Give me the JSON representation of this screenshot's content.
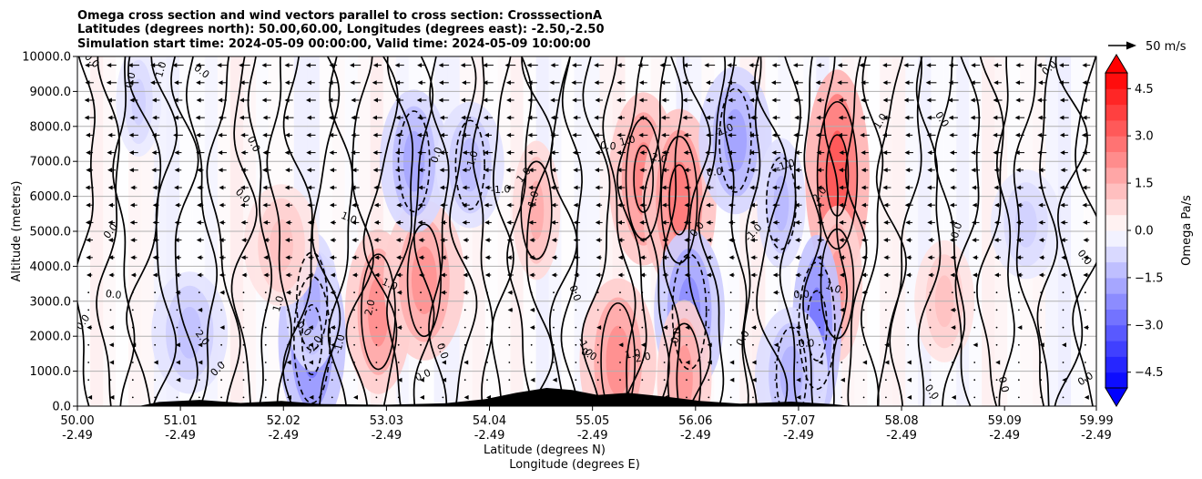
{
  "chart_data": {
    "type": "heatmap",
    "title_lines": [
      "Omega cross section and wind vectors parallel to cross section: CrosssectionA",
      "Latitudes (degrees north): 50.00,60.00, Longitudes (degrees east): -2.50,-2.50",
      "Simulation start time: 2024-05-09 00:00:00, Valid time: 2024-05-09 10:00:00"
    ],
    "ylabel": "Altitude (meters)",
    "xlabel_lat": "Latitude (degrees N)",
    "xlabel_lon": "Longitude (degrees E)",
    "ylim": [
      0,
      10000
    ],
    "y_ticks": [
      "0.0",
      "1000.0",
      "2000.0",
      "3000.0",
      "4000.0",
      "5000.0",
      "6000.0",
      "7000.0",
      "8000.0",
      "9000.0",
      "10000.0"
    ],
    "x_ticks_lat": [
      "50.00",
      "51.01",
      "52.02",
      "53.03",
      "54.04",
      "55.05",
      "56.06",
      "57.07",
      "58.08",
      "59.09",
      "59.99"
    ],
    "x_ticks_lon": [
      "-2.49",
      "-2.49",
      "-2.49",
      "-2.49",
      "-2.49",
      "-2.49",
      "-2.49",
      "-2.49",
      "-2.49",
      "-2.49",
      "-2.49"
    ],
    "xlim_lat": [
      50.0,
      59.99
    ],
    "colorbar": {
      "label": "Omega Pa/s",
      "range": [
        -5.0,
        5.0
      ],
      "tick_labels": [
        "4.5",
        "3.0",
        "1.5",
        "0.0",
        "−1.5",
        "−3.0",
        "−4.5"
      ],
      "tick_values": [
        4.5,
        3.0,
        1.5,
        0.0,
        -1.5,
        -3.0,
        -4.5
      ],
      "low_color": "#0000ff",
      "mid_color": "#ffffff",
      "high_color": "#ff0000",
      "extend": "both"
    },
    "quiver_key_label": "50 m/s",
    "contour_labels": [
      "0.0",
      "1.0",
      "-1.0",
      "2.0",
      "-2.0"
    ],
    "omega_blobs": [
      {
        "lat": 52.3,
        "alt": 1900,
        "value": -2.6
      },
      {
        "lat": 52.3,
        "alt": 3000,
        "value": -1.6
      },
      {
        "lat": 52.95,
        "alt": 2700,
        "value": 2.2
      },
      {
        "lat": 53.4,
        "alt": 3600,
        "value": 2.1
      },
      {
        "lat": 53.3,
        "alt": 7000,
        "value": -1.7
      },
      {
        "lat": 53.85,
        "alt": 6900,
        "value": -1.3
      },
      {
        "lat": 54.5,
        "alt": 5600,
        "value": 1.6
      },
      {
        "lat": 55.3,
        "alt": 1300,
        "value": 2.2
      },
      {
        "lat": 55.55,
        "alt": 6500,
        "value": 2.4
      },
      {
        "lat": 55.9,
        "alt": 5900,
        "value": 2.6
      },
      {
        "lat": 56.0,
        "alt": 2700,
        "value": -2.2
      },
      {
        "lat": 55.95,
        "alt": 800,
        "value": 2.0
      },
      {
        "lat": 56.45,
        "alt": 7600,
        "value": -1.8
      },
      {
        "lat": 56.9,
        "alt": 5800,
        "value": -1.4
      },
      {
        "lat": 57.45,
        "alt": 6600,
        "value": 3.3
      },
      {
        "lat": 57.45,
        "alt": 3500,
        "value": 2.0
      },
      {
        "lat": 57.25,
        "alt": 2300,
        "value": -2.6
      },
      {
        "lat": 57.0,
        "alt": 900,
        "value": -1.5
      },
      {
        "lat": 51.1,
        "alt": 2100,
        "value": -1.2
      },
      {
        "lat": 52.0,
        "alt": 4600,
        "value": 1.2
      },
      {
        "lat": 50.6,
        "alt": 8700,
        "value": -0.9
      },
      {
        "lat": 58.5,
        "alt": 3000,
        "value": 1.2
      },
      {
        "lat": 59.3,
        "alt": 5200,
        "value": -0.9
      }
    ],
    "terrain": [
      {
        "lat": 50.0,
        "alt": 0
      },
      {
        "lat": 50.6,
        "alt": 0
      },
      {
        "lat": 50.8,
        "alt": 120
      },
      {
        "lat": 51.2,
        "alt": 180
      },
      {
        "lat": 51.6,
        "alt": 90
      },
      {
        "lat": 52.0,
        "alt": 150
      },
      {
        "lat": 52.4,
        "alt": 60
      },
      {
        "lat": 53.0,
        "alt": 40
      },
      {
        "lat": 53.6,
        "alt": 80
      },
      {
        "lat": 54.0,
        "alt": 200
      },
      {
        "lat": 54.3,
        "alt": 380
      },
      {
        "lat": 54.6,
        "alt": 520
      },
      {
        "lat": 54.85,
        "alt": 460
      },
      {
        "lat": 55.1,
        "alt": 320
      },
      {
        "lat": 55.4,
        "alt": 380
      },
      {
        "lat": 55.8,
        "alt": 260
      },
      {
        "lat": 56.1,
        "alt": 150
      },
      {
        "lat": 56.5,
        "alt": 70
      },
      {
        "lat": 57.0,
        "alt": 130
      },
      {
        "lat": 57.4,
        "alt": 60
      },
      {
        "lat": 57.6,
        "alt": 0
      },
      {
        "lat": 59.99,
        "alt": 0
      }
    ]
  }
}
